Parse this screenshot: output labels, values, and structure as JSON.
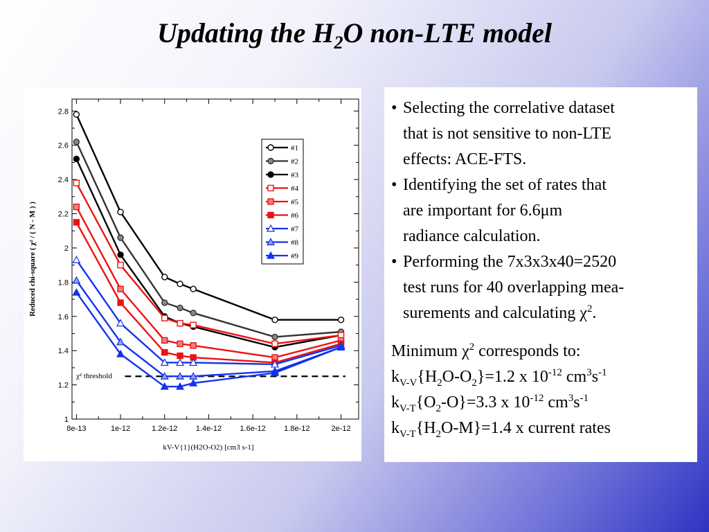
{
  "slide": {
    "title_pre": "Updating the H",
    "title_sub": "2",
    "title_post": "O non-LTE model"
  },
  "bullets": [
    {
      "line1": "Selecting the correlative dataset",
      "line2": "that is not sensitive to non-LTE",
      "line3": "effects: ACE-FTS."
    },
    {
      "line1": "Identifying the set of rates that",
      "line2": "are important for 6.6μm",
      "line3": "radiance calculation."
    },
    {
      "line1": "Performing the 7x3x3x40=2520",
      "line2": "test runs for 40 overlapping mea-",
      "line3_pre": "surements and calculating χ",
      "line3_sup": "2",
      "line3_post": "."
    }
  ],
  "minimum": {
    "intro_pre": "Minimum χ",
    "intro_sup": "2",
    "intro_post": " corresponds to:",
    "line1": {
      "k": "k",
      "k_sub": "V-V",
      "a": "{H",
      "a_sub": "2",
      "b": "O-O",
      "b_sub": "2",
      "c": "}=1.2 x 10",
      "c_sup": "-12",
      "d": " cm",
      "d_sup": "3",
      "e": "s",
      "e_sup": "-1"
    },
    "line2": {
      "k": "k",
      "k_sub": "V-T",
      "a": "{O",
      "a_sub": "2",
      "b": "-O}=3.3 x 10",
      "b_sup": "-12",
      "c": " cm",
      "c_sup": "3",
      "d": "s",
      "d_sup": "-1"
    },
    "line3": {
      "k": "k",
      "k_sub": "V-T",
      "a": "{H",
      "a_sub": "2",
      "b": "O-M}=1.4 x current rates"
    }
  },
  "chart_data": {
    "type": "line",
    "ylabel": "Reduced chi-square ( χ² / ( N - M ) )",
    "xlabel": "kV-V{1}(H2O-O2) [cm3 s-1]",
    "xlim": [
      7.8e-13,
      2.08e-12
    ],
    "ylim": [
      1.0,
      2.87
    ],
    "xticks": [
      8e-13,
      1e-12,
      1.2e-12,
      1.4e-12,
      1.6e-12,
      1.8e-12,
      2e-12
    ],
    "xtick_labels": [
      "8e-13",
      "1e-12",
      "1.2e-12",
      "1.4e-12",
      "1.6e-12",
      "1.8e-12",
      "2e-12"
    ],
    "yticks": [
      1,
      1.2,
      1.4,
      1.6,
      1.8,
      2,
      2.2,
      2.4,
      2.6,
      2.8
    ],
    "ytick_labels": [
      "1",
      "1.2",
      "1.4",
      "1.6",
      "1.8",
      "2",
      "2.2",
      "2.4",
      "2.6",
      "2.8"
    ],
    "x": [
      8e-13,
      1e-12,
      1.2e-12,
      1.27e-12,
      1.33e-12,
      1.7e-12,
      2e-12
    ],
    "threshold": {
      "label": "χ² threshold",
      "value": 1.25
    },
    "legend_position": "top-right",
    "series": [
      {
        "name": "#1",
        "color": "#000000",
        "marker": "open-circle",
        "values": [
          2.78,
          2.21,
          1.83,
          1.79,
          1.76,
          1.58,
          1.58
        ]
      },
      {
        "name": "#2",
        "color": "#333333",
        "marker": "hatch-circle",
        "values": [
          2.62,
          2.06,
          1.68,
          1.65,
          1.62,
          1.48,
          1.51
        ]
      },
      {
        "name": "#3",
        "color": "#000000",
        "marker": "filled-circle",
        "values": [
          2.52,
          1.96,
          1.6,
          1.56,
          1.54,
          1.42,
          1.49
        ]
      },
      {
        "name": "#4",
        "color": "#ee1111",
        "marker": "open-square",
        "values": [
          2.38,
          1.9,
          1.59,
          1.56,
          1.55,
          1.44,
          1.49
        ]
      },
      {
        "name": "#5",
        "color": "#ee1111",
        "marker": "hatch-square",
        "values": [
          2.24,
          1.76,
          1.46,
          1.44,
          1.43,
          1.36,
          1.46
        ]
      },
      {
        "name": "#6",
        "color": "#ee1111",
        "marker": "filled-square",
        "values": [
          2.15,
          1.68,
          1.39,
          1.37,
          1.36,
          1.33,
          1.44
        ]
      },
      {
        "name": "#7",
        "color": "#1133ee",
        "marker": "open-triangle",
        "values": [
          1.93,
          1.56,
          1.33,
          1.33,
          1.33,
          1.32,
          1.43
        ]
      },
      {
        "name": "#8",
        "color": "#1133ee",
        "marker": "hatch-triangle",
        "values": [
          1.81,
          1.45,
          1.25,
          1.25,
          1.25,
          1.28,
          1.42
        ]
      },
      {
        "name": "#9",
        "color": "#1133ee",
        "marker": "filled-triangle",
        "values": [
          1.74,
          1.38,
          1.19,
          1.19,
          1.21,
          1.27,
          1.42
        ]
      }
    ]
  }
}
